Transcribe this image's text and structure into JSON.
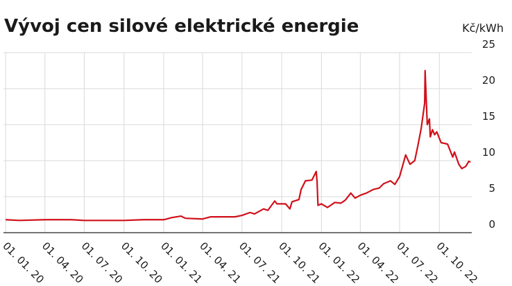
{
  "chart_data": {
    "type": "line",
    "title": "Vývoj cen silové elektrické energie",
    "y_unit": "Kč/kWh",
    "x": [
      "2020-01-01",
      "2020-02-01",
      "2020-04-01",
      "2020-06-01",
      "2020-07-01",
      "2020-10-01",
      "2020-11-15",
      "2021-01-01",
      "2021-01-20",
      "2021-02-10",
      "2021-02-20",
      "2021-04-01",
      "2021-04-20",
      "2021-06-15",
      "2021-07-01",
      "2021-07-20",
      "2021-07-30",
      "2021-08-20",
      "2021-08-30",
      "2021-09-15",
      "2021-09-20",
      "2021-10-10",
      "2021-10-20",
      "2021-10-25",
      "2021-11-10",
      "2021-11-15",
      "2021-11-25",
      "2021-12-10",
      "2021-12-20",
      "2021-12-22",
      "2021-12-24",
      "2022-01-01",
      "2022-01-15",
      "2022-02-01",
      "2022-02-15",
      "2022-02-25",
      "2022-03-10",
      "2022-03-20",
      "2022-04-01",
      "2022-04-15",
      "2022-05-01",
      "2022-05-15",
      "2022-05-25",
      "2022-06-10",
      "2022-06-20",
      "2022-07-01",
      "2022-07-15",
      "2022-07-25",
      "2022-08-05",
      "2022-08-12",
      "2022-08-20",
      "2022-08-28",
      "2022-08-29",
      "2022-09-03",
      "2022-09-08",
      "2022-09-10",
      "2022-09-15",
      "2022-09-20",
      "2022-09-25",
      "2022-10-05",
      "2022-10-20",
      "2022-11-01",
      "2022-11-05",
      "2022-11-15",
      "2022-11-22",
      "2022-12-01",
      "2022-12-08",
      "2022-12-12"
    ],
    "series": [
      {
        "color": "#d0101a",
        "values": [
          1.8,
          1.7,
          1.8,
          1.8,
          1.7,
          1.7,
          1.8,
          1.8,
          2.1,
          2.3,
          2.0,
          1.9,
          2.2,
          2.2,
          2.4,
          2.8,
          2.6,
          3.3,
          3.1,
          4.4,
          4.0,
          4.0,
          3.3,
          4.3,
          4.6,
          6.0,
          7.2,
          7.3,
          8.5,
          7.0,
          3.8,
          4.0,
          3.5,
          4.2,
          4.1,
          4.5,
          5.5,
          4.8,
          5.2,
          5.5,
          6.0,
          6.2,
          6.8,
          7.2,
          6.7,
          7.8,
          10.8,
          9.5,
          10.0,
          12.0,
          14.5,
          18.0,
          22.5,
          15.0,
          15.8,
          13.3,
          14.3,
          13.6,
          14.0,
          12.5,
          12.3,
          10.5,
          11.2,
          9.5,
          8.9,
          9.2,
          9.9,
          9.8
        ]
      }
    ],
    "xlim": [
      "2019-12-27",
      "2022-12-15"
    ],
    "xticks": [
      {
        "value": "2020-01-01",
        "label": "01. 01. 20"
      },
      {
        "value": "2020-04-01",
        "label": "01. 04. 20"
      },
      {
        "value": "2020-07-01",
        "label": "01. 07. 20"
      },
      {
        "value": "2020-10-01",
        "label": "01. 10. 20"
      },
      {
        "value": "2021-01-01",
        "label": "01. 01. 21"
      },
      {
        "value": "2021-04-01",
        "label": "01. 04. 21"
      },
      {
        "value": "2021-07-01",
        "label": "01. 07. 21"
      },
      {
        "value": "2021-10-01",
        "label": "01. 10. 21"
      },
      {
        "value": "2022-01-01",
        "label": "01. 01. 22"
      },
      {
        "value": "2022-04-01",
        "label": "01. 04. 22"
      },
      {
        "value": "2022-07-01",
        "label": "01. 07. 22"
      },
      {
        "value": "2022-10-01",
        "label": "01. 10. 22"
      }
    ],
    "ylim": [
      0,
      25
    ],
    "yticks": [
      0,
      5,
      10,
      15,
      20,
      25
    ],
    "grid": true
  }
}
